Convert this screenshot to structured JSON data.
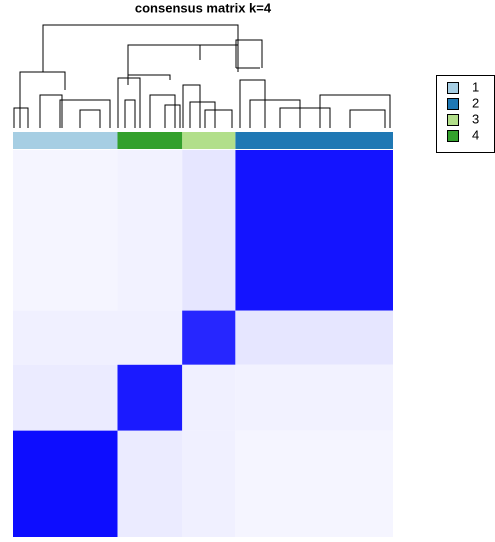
{
  "chart_data": {
    "type": "heatmap",
    "title": "consensus matrix k=4",
    "series": [
      {
        "name": "1",
        "color": "#a6cee3",
        "size": 55
      },
      {
        "name": "2",
        "color": "#1f78b4",
        "size": 83
      },
      {
        "name": "3",
        "color": "#b2df8a",
        "size": 28
      },
      {
        "name": "4",
        "color": "#33a02c",
        "size": 34
      }
    ],
    "column_order": [
      0,
      3,
      2,
      1
    ],
    "matrix": [
      [
        0.95,
        0.04,
        0.06,
        0.08
      ],
      [
        0.04,
        0.92,
        0.1,
        0.05
      ],
      [
        0.06,
        0.1,
        0.85,
        0.06
      ],
      [
        0.08,
        0.05,
        0.06,
        0.9
      ]
    ],
    "matrix_range": [
      0,
      1
    ],
    "low_color": "#ffffff",
    "high_color": "#0000ff"
  }
}
